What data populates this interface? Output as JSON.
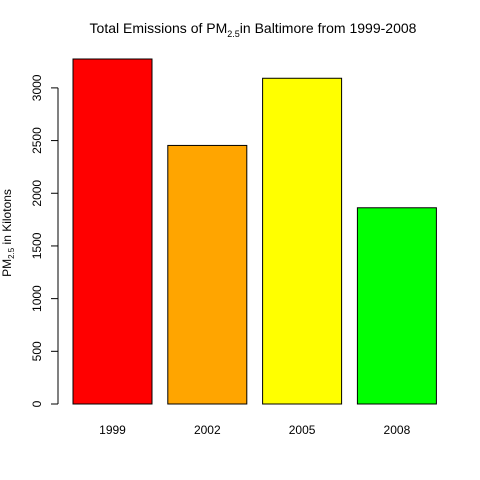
{
  "chart_data": {
    "type": "bar",
    "title": {
      "prefix": "Total Emissions of PM",
      "subscript": "2.5",
      "suffix": "in Baltimore from 1999-2008"
    },
    "xlabel": "",
    "ylabel": {
      "prefix": "PM",
      "subscript": "2.5",
      "suffix": " in Kilotons"
    },
    "categories": [
      "1999",
      "2002",
      "2005",
      "2008"
    ],
    "values": [
      3274.18,
      2453.92,
      3091.35,
      1862.28
    ],
    "colors": [
      "#ff0000",
      "#ffa500",
      "#ffff00",
      "#00ff00"
    ],
    "yticks": [
      0,
      500,
      1000,
      1500,
      2000,
      2500,
      3000
    ],
    "ylim": [
      0,
      3274.18
    ],
    "grid": false,
    "legend": "none"
  }
}
